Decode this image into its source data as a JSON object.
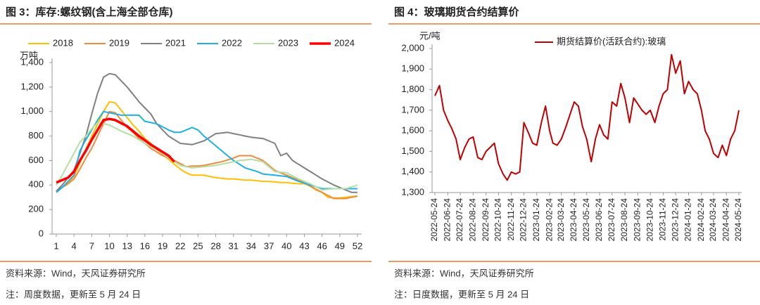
{
  "chart_data": [
    {
      "type": "line",
      "title": "图 3：库存:螺纹钢(含上海全部仓库)",
      "y_label": "万吨",
      "source": "资料来源：Wind，天风证券研究所",
      "note": "注：周度数据，更新至 5 月 24 日",
      "x": [
        1,
        2,
        3,
        4,
        5,
        6,
        7,
        8,
        9,
        10,
        11,
        12,
        13,
        14,
        15,
        16,
        17,
        18,
        19,
        20,
        21,
        22,
        23,
        24,
        25,
        26,
        27,
        28,
        29,
        30,
        31,
        32,
        33,
        34,
        35,
        36,
        37,
        38,
        39,
        40,
        41,
        42,
        43,
        44,
        45,
        46,
        47,
        48,
        49,
        50,
        51,
        52
      ],
      "xlim": [
        1,
        52
      ],
      "xticks": [
        1,
        4,
        7,
        10,
        13,
        16,
        19,
        22,
        25,
        28,
        31,
        34,
        37,
        40,
        43,
        46,
        49,
        52
      ],
      "ylim": [
        0,
        1400
      ],
      "yticks": [
        0,
        200,
        400,
        600,
        800,
        {
          "value": 1000,
          "label": "1,000"
        },
        {
          "value": 1200,
          "label": "1,200"
        },
        {
          "value": 1400,
          "label": "1,400"
        }
      ],
      "legend": "top",
      "series": [
        {
          "name": "2018",
          "color": "#ffc000",
          "values": [
            340,
            380,
            420,
            470,
            580,
            690,
            800,
            900,
            1000,
            1080,
            1070,
            1010,
            950,
            890,
            840,
            780,
            740,
            690,
            650,
            610,
            570,
            530,
            500,
            480,
            480,
            480,
            470,
            460,
            455,
            450,
            450,
            445,
            440,
            440,
            435,
            430,
            430,
            425,
            420,
            420,
            415,
            410,
            410,
            390,
            360,
            340,
            300,
            295,
            295,
            300,
            305,
            310
          ]
        },
        {
          "name": "2019",
          "color": "#f08a3c",
          "values": [
            350,
            380,
            410,
            450,
            530,
            620,
            700,
            800,
            900,
            1000,
            990,
            930,
            870,
            830,
            780,
            740,
            700,
            670,
            640,
            620,
            600,
            575,
            550,
            555,
            555,
            560,
            570,
            580,
            590,
            605,
            620,
            640,
            640,
            640,
            620,
            600,
            560,
            520,
            500,
            480,
            460,
            440,
            420,
            390,
            365,
            340,
            315,
            290,
            290,
            290,
            300,
            310
          ]
        },
        {
          "name": "2021",
          "color": "#808080",
          "values": [
            350,
            400,
            460,
            520,
            660,
            800,
            980,
            1150,
            1280,
            1310,
            1300,
            1250,
            1200,
            1140,
            1080,
            1030,
            980,
            900,
            850,
            800,
            770,
            740,
            735,
            730,
            745,
            760,
            790,
            820,
            825,
            830,
            820,
            810,
            800,
            790,
            785,
            780,
            760,
            740,
            640,
            660,
            600,
            570,
            540,
            510,
            480,
            450,
            425,
            400,
            380,
            360,
            340,
            340
          ]
        },
        {
          "name": "2022",
          "color": "#1fb0e6",
          "values": [
            340,
            380,
            430,
            480,
            680,
            770,
            850,
            930,
            1000,
            990,
            980,
            970,
            970,
            970,
            970,
            920,
            910,
            900,
            875,
            850,
            830,
            830,
            850,
            870,
            850,
            800,
            760,
            720,
            680,
            640,
            600,
            570,
            540,
            525,
            510,
            490,
            485,
            480,
            475,
            470,
            450,
            430,
            415,
            400,
            385,
            370,
            370,
            370,
            370,
            370,
            370,
            370
          ]
        },
        {
          "name": "2023",
          "color": "#b6dea0",
          "values": [
            400,
            480,
            570,
            660,
            750,
            800,
            860,
            910,
            900,
            890,
            865,
            840,
            820,
            800,
            770,
            740,
            715,
            690,
            655,
            620,
            590,
            560,
            550,
            540,
            545,
            550,
            555,
            560,
            570,
            580,
            590,
            600,
            605,
            610,
            600,
            590,
            550,
            510,
            505,
            500,
            475,
            450,
            430,
            410,
            385,
            360,
            365,
            370,
            370,
            370,
            385,
            400
          ]
        },
        {
          "name": "2024",
          "color": "#ff0000",
          "values": [
            420,
            440,
            460,
            510,
            600,
            680,
            770,
            850,
            930,
            940,
            930,
            905,
            880,
            840,
            800,
            765,
            730,
            700,
            670,
            640,
            590,
            null,
            null,
            null,
            null,
            null,
            null,
            null,
            null,
            null,
            null,
            null,
            null,
            null,
            null,
            null,
            null,
            null,
            null,
            null,
            null,
            null,
            null,
            null,
            null,
            null,
            null,
            null,
            null,
            null,
            null,
            null
          ]
        }
      ]
    },
    {
      "type": "line",
      "title": "图 4：玻璃期货合约结算价",
      "y_label": "元/吨",
      "source": "资料来源：Wind，天风证券研究所",
      "note": "注：日度数据，更新至 5 月 24 日",
      "x": [
        "2022-05-24",
        "2022-06-04",
        "2022-06-14",
        "2022-06-24",
        "2022-07-04",
        "2022-07-14",
        "2022-07-24",
        "2022-08-04",
        "2022-08-14",
        "2022-08-24",
        "2022-09-04",
        "2022-09-14",
        "2022-09-24",
        "2022-10-04",
        "2022-10-14",
        "2022-10-24",
        "2022-11-04",
        "2022-11-14",
        "2022-11-24",
        "2022-12-04",
        "2022-12-14",
        "2022-12-24",
        "2023-01-04",
        "2023-01-14",
        "2023-01-24",
        "2023-02-04",
        "2023-02-14",
        "2023-02-24",
        "2023-03-04",
        "2023-03-14",
        "2023-03-24",
        "2023-04-04",
        "2023-04-14",
        "2023-04-24",
        "2023-05-04",
        "2023-05-14",
        "2023-05-24",
        "2023-06-04",
        "2023-06-14",
        "2023-06-24",
        "2023-07-04",
        "2023-07-14",
        "2023-07-24",
        "2023-08-04",
        "2023-08-14",
        "2023-08-24",
        "2023-09-04",
        "2023-09-14",
        "2023-09-24",
        "2023-10-04",
        "2023-10-14",
        "2023-10-24",
        "2023-11-04",
        "2023-11-14",
        "2023-11-24",
        "2023-12-04",
        "2023-12-14",
        "2023-12-24",
        "2024-01-04",
        "2024-01-14",
        "2024-01-24",
        "2024-02-04",
        "2024-02-14",
        "2024-02-24",
        "2024-03-04",
        "2024-03-14",
        "2024-03-24",
        "2024-04-04",
        "2024-04-14",
        "2024-04-24",
        "2024-05-04",
        "2024-05-14",
        "2024-05-24"
      ],
      "xlim": [
        "2022-05-24",
        "2024-05-24"
      ],
      "xticks": [
        "2022-05-24",
        "2022-06-24",
        "2022-07-24",
        "2022-08-24",
        "2022-09-24",
        "2022-10-24",
        "2022-11-24",
        "2022-12-24",
        "2023-01-24",
        "2023-02-24",
        "2023-03-24",
        "2023-04-24",
        "2023-05-24",
        "2023-06-24",
        "2023-07-24",
        "2023-08-24",
        "2023-09-24",
        "2023-10-24",
        "2023-11-24",
        "2023-12-24",
        "2024-01-24",
        "2024-02-24",
        "2024-03-24",
        "2024-04-24",
        "2024-05-24"
      ],
      "ylim": [
        1300,
        2000
      ],
      "yticks": [
        {
          "value": 1300,
          "label": "1,300"
        },
        {
          "value": 1400,
          "label": "1,400"
        },
        {
          "value": 1500,
          "label": "1,500"
        },
        {
          "value": 1600,
          "label": "1,600"
        },
        {
          "value": 1700,
          "label": "1,700"
        },
        {
          "value": 1800,
          "label": "1,800"
        },
        {
          "value": 1900,
          "label": "1,900"
        },
        {
          "value": 2000,
          "label": "2,000"
        }
      ],
      "legend": "top",
      "series": [
        {
          "name": "期货结算价(活跃合约):玻璃",
          "color": "#c00000",
          "values": [
            1770,
            1820,
            1700,
            1650,
            1610,
            1560,
            1460,
            1520,
            1560,
            1570,
            1470,
            1460,
            1500,
            1520,
            1540,
            1440,
            1390,
            1360,
            1400,
            1390,
            1400,
            1640,
            1590,
            1540,
            1530,
            1640,
            1720,
            1600,
            1540,
            1530,
            1560,
            1620,
            1680,
            1740,
            1720,
            1620,
            1560,
            1450,
            1560,
            1630,
            1580,
            1560,
            1740,
            1720,
            1830,
            1760,
            1640,
            1760,
            1730,
            1700,
            1680,
            1700,
            1640,
            1720,
            1780,
            1800,
            1970,
            1880,
            1940,
            1780,
            1840,
            1800,
            1780,
            1700,
            1600,
            1560,
            1490,
            1470,
            1530,
            1480,
            1560,
            1600,
            1700
          ]
        }
      ]
    }
  ]
}
